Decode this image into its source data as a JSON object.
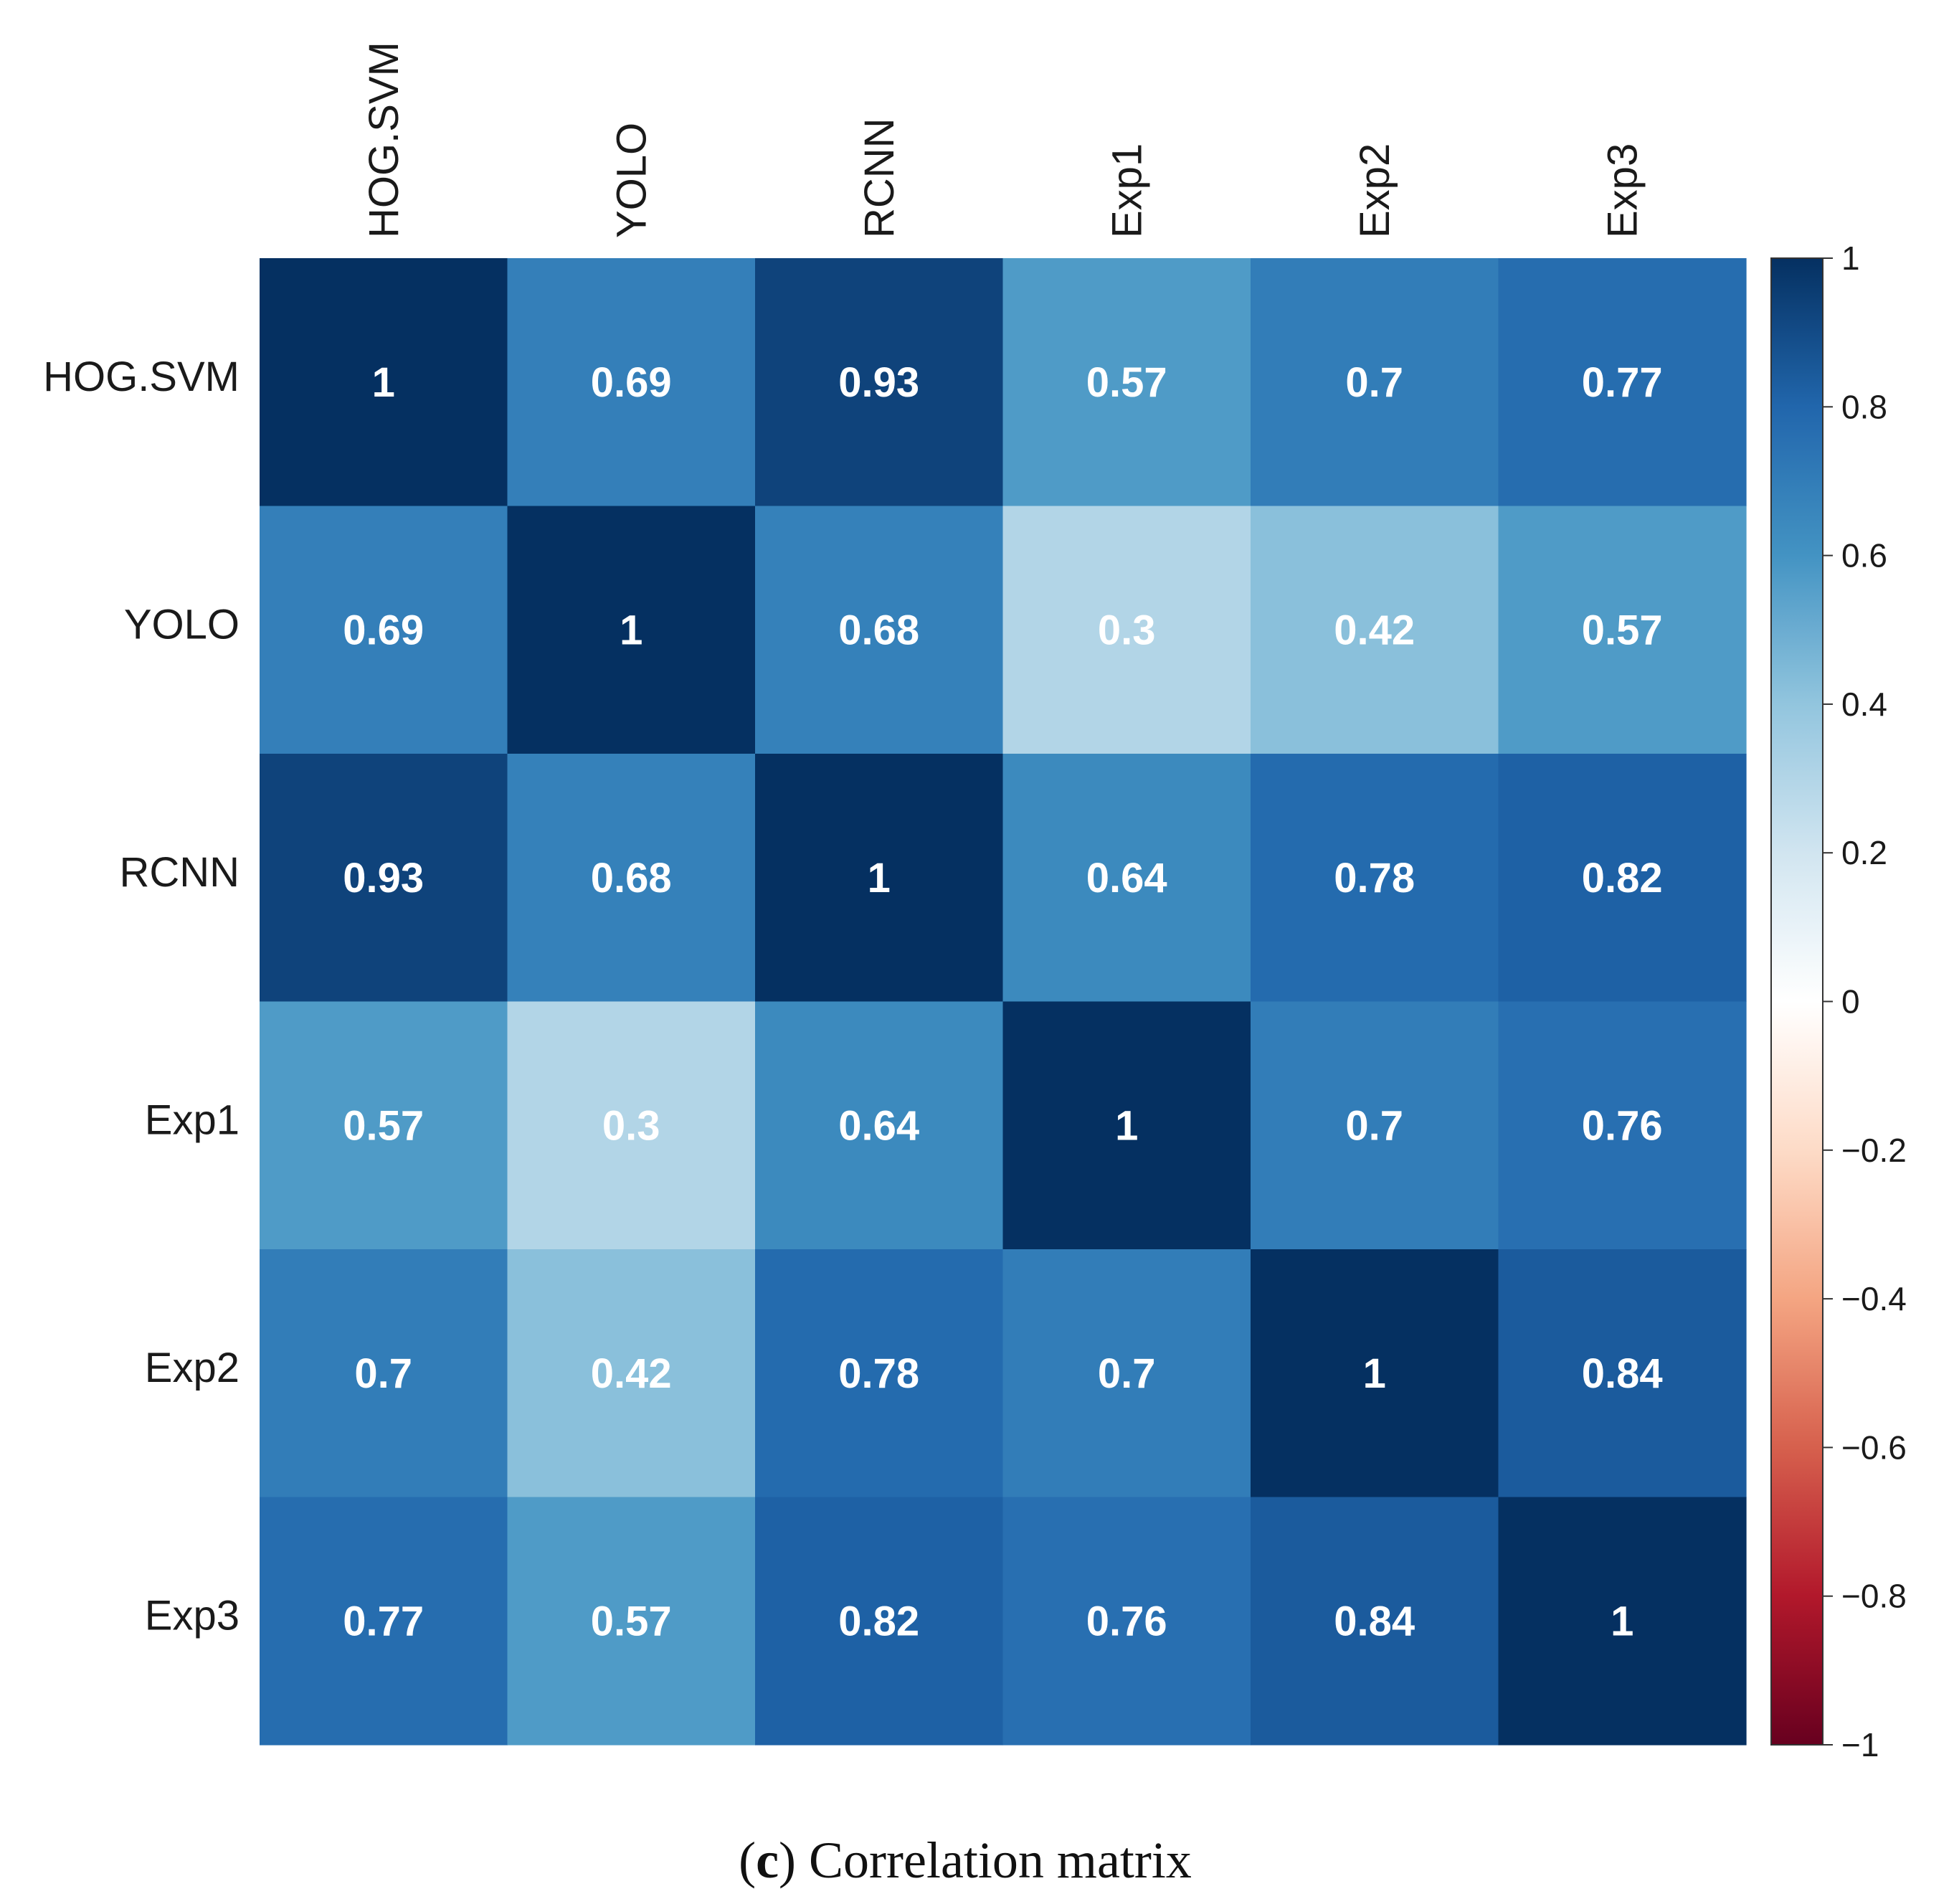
{
  "chart_data": {
    "type": "heatmap",
    "rows": [
      "HOG.SVM",
      "YOLO",
      "RCNN",
      "Exp1",
      "Exp2",
      "Exp3"
    ],
    "columns": [
      "HOG.SVM",
      "YOLO",
      "RCNN",
      "Exp1",
      "Exp2",
      "Exp3"
    ],
    "values": [
      [
        1,
        0.69,
        0.93,
        0.57,
        0.7,
        0.77
      ],
      [
        0.69,
        1,
        0.68,
        0.3,
        0.42,
        0.57
      ],
      [
        0.93,
        0.68,
        1,
        0.64,
        0.78,
        0.82
      ],
      [
        0.57,
        0.3,
        0.64,
        1,
        0.7,
        0.76
      ],
      [
        0.7,
        0.42,
        0.78,
        0.7,
        1,
        0.84
      ],
      [
        0.77,
        0.57,
        0.82,
        0.76,
        0.84,
        1
      ]
    ],
    "value_labels": [
      [
        "1",
        "0.69",
        "0.93",
        "0.57",
        "0.7",
        "0.77"
      ],
      [
        "0.69",
        "1",
        "0.68",
        "0.3",
        "0.42",
        "0.57"
      ],
      [
        "0.93",
        "0.68",
        "1",
        "0.64",
        "0.78",
        "0.82"
      ],
      [
        "0.57",
        "0.3",
        "0.64",
        "1",
        "0.7",
        "0.76"
      ],
      [
        "0.7",
        "0.42",
        "0.78",
        "0.7",
        "1",
        "0.84"
      ],
      [
        "0.77",
        "0.57",
        "0.82",
        "0.76",
        "0.84",
        "1"
      ]
    ],
    "colorbar": {
      "range": [
        -1,
        1
      ],
      "ticks": [
        1,
        0.8,
        0.6,
        0.4,
        0.2,
        0,
        -0.2,
        -0.4,
        -0.6,
        -0.8,
        -1
      ],
      "tick_labels": [
        "1",
        "0.8",
        "0.6",
        "0.4",
        "0.2",
        "0",
        "−0.2",
        "−0.4",
        "−0.6",
        "−0.8",
        "−1"
      ],
      "position": "right"
    },
    "colors": {
      "negative_end": "#67001f",
      "zero": "#ffffff",
      "positive_end": "#053061"
    },
    "column_labels_position": "top, rotated vertical",
    "row_labels_position": "left"
  },
  "caption": {
    "letter": "c",
    "open_paren": "(",
    "close_paren": ")",
    "text": " Correlation matrix"
  }
}
